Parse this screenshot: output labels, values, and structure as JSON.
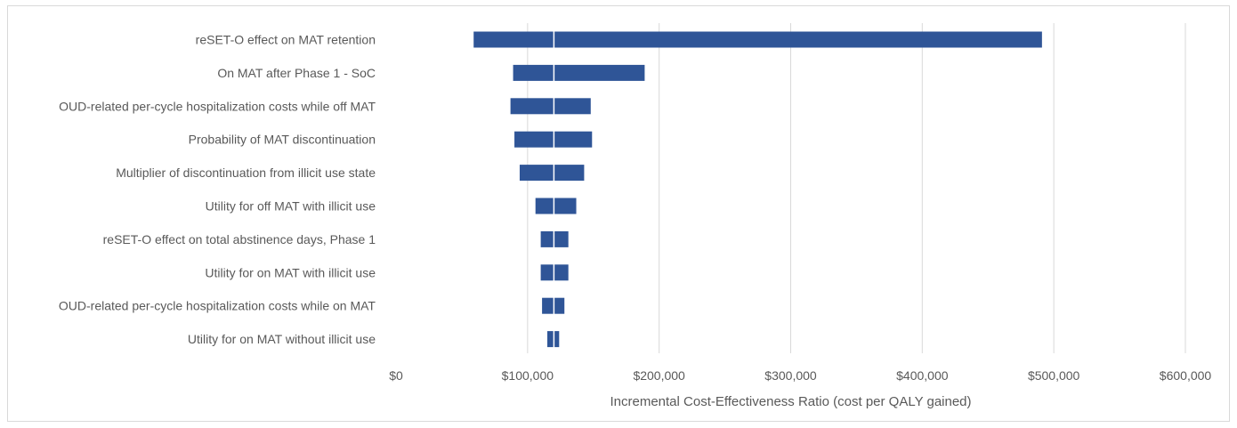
{
  "chart_data": {
    "type": "bar",
    "orientation": "horizontal",
    "subtype": "tornado",
    "categories": [
      "reSET-O effect on MAT retention",
      "On MAT after Phase 1 - SoC",
      "OUD-related per-cycle hospitalization costs while off MAT",
      "Probability of MAT discontinuation",
      "Multiplier of discontinuation from illicit use state",
      "Utility for off MAT with illicit use",
      "reSET-O effect on total abstinence days, Phase 1",
      "Utility for on MAT with illicit use",
      "OUD-related per-cycle hospitalization costs while on MAT",
      "Utility for on MAT without illicit use"
    ],
    "low": [
      59000,
      89000,
      87000,
      90000,
      94000,
      106000,
      110000,
      110000,
      111000,
      115000
    ],
    "high": [
      491000,
      189000,
      148000,
      149000,
      143000,
      137000,
      131000,
      131000,
      128000,
      124000
    ],
    "base_value": 120000,
    "xlabel": "Incremental Cost-Effectiveness  Ratio (cost per QALY gained)",
    "xlim": [
      0,
      600000
    ],
    "xticks": [
      0,
      100000,
      200000,
      300000,
      400000,
      500000,
      600000
    ],
    "xtick_labels": [
      "$0",
      "$100,000",
      "$200,000",
      "$300,000",
      "$400,000",
      "$500,000",
      "$600,000"
    ],
    "grid": "vertical",
    "legend": "none",
    "bar_color": "#2f5597",
    "grid_color": "#d9d9d9",
    "base_line_color": "#ffffff"
  }
}
